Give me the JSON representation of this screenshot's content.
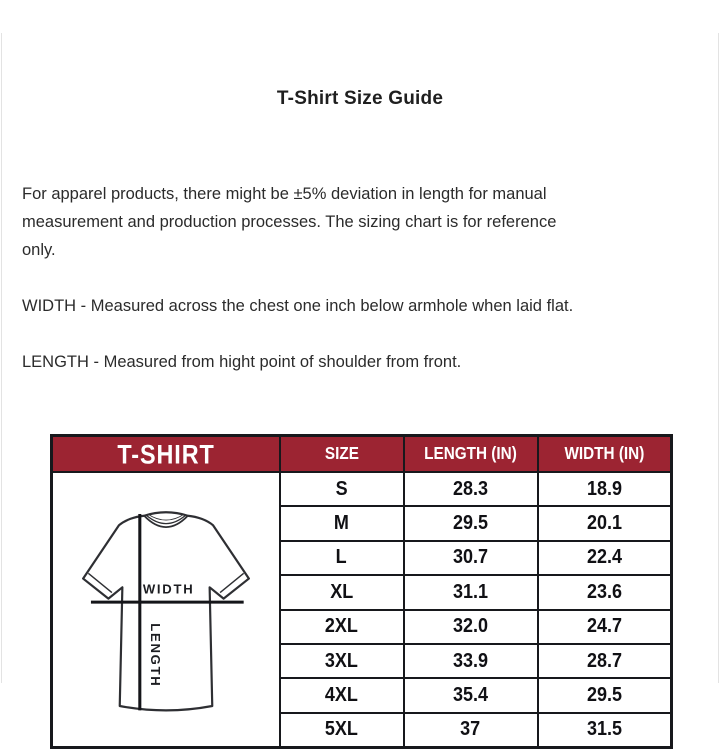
{
  "page": {
    "title": "T-Shirt Size Guide",
    "intro": "For apparel products, there might be ±5% deviation in length for manual\nmeasurement and production processes. The sizing chart is for reference\nonly.",
    "width_note": "WIDTH - Measured across the chest one inch below armhole when laid flat.",
    "length_note": "LENGTH - Measured from hight point of shoulder from front."
  },
  "diagram": {
    "width_label": "WIDTH",
    "length_label": "LENGTH"
  },
  "size_table": {
    "product_label": "T-SHIRT",
    "columns": [
      "SIZE",
      "LENGTH (IN)",
      "WIDTH (IN)"
    ],
    "rows": [
      {
        "size": "S",
        "length": "28.3",
        "width": "18.9"
      },
      {
        "size": "M",
        "length": "29.5",
        "width": "20.1"
      },
      {
        "size": "L",
        "length": "30.7",
        "width": "22.4"
      },
      {
        "size": "XL",
        "length": "31.1",
        "width": "23.6"
      },
      {
        "size": "2XL",
        "length": "32.0",
        "width": "24.7"
      },
      {
        "size": "3XL",
        "length": "33.9",
        "width": "28.7"
      },
      {
        "size": "4XL",
        "length": "35.4",
        "width": "29.5"
      },
      {
        "size": "5XL",
        "length": "37",
        "width": "31.5"
      }
    ],
    "colors": {
      "header_bg": "#9c2432",
      "header_text": "#ffffff",
      "grid": "#17181c"
    }
  },
  "chart_data": {
    "type": "table",
    "title": "T-Shirt Size Guide",
    "columns": [
      "SIZE",
      "LENGTH (IN)",
      "WIDTH (IN)"
    ],
    "rows": [
      [
        "S",
        28.3,
        18.9
      ],
      [
        "M",
        29.5,
        20.1
      ],
      [
        "L",
        30.7,
        22.4
      ],
      [
        "XL",
        31.1,
        23.6
      ],
      [
        "2XL",
        32.0,
        24.7
      ],
      [
        "3XL",
        33.9,
        28.7
      ],
      [
        "4XL",
        35.4,
        29.5
      ],
      [
        "5XL",
        37,
        31.5
      ]
    ]
  }
}
